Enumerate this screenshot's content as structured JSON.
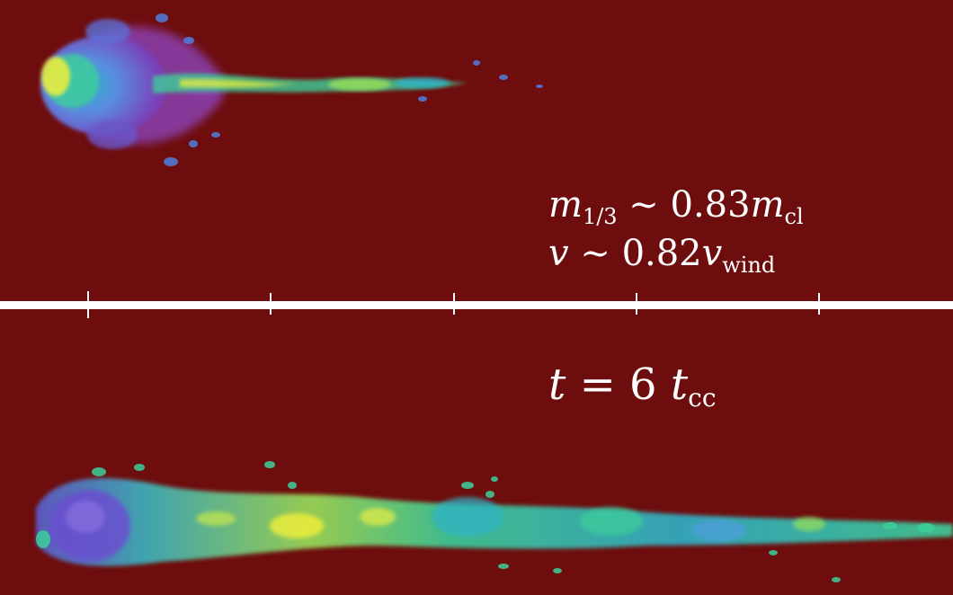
{
  "annotations": {
    "mass": {
      "symbol": "m",
      "subscript": "1/3",
      "relation": "∼",
      "value": "0.83",
      "unit_symbol": "m",
      "unit_subscript": "cl"
    },
    "velocity": {
      "symbol": "v",
      "relation": "∼",
      "value": "0.82",
      "unit_symbol": "v",
      "unit_subscript": "wind"
    },
    "time": {
      "symbol": "t",
      "relation": "=",
      "value": "6",
      "unit_symbol": "t",
      "unit_subscript": "cc"
    }
  },
  "colors": {
    "background": "#6e0d0d",
    "divider": "#ffffff",
    "text": "#ffffff",
    "colormap": [
      "#5b2ea6",
      "#7a55d6",
      "#4f7fe0",
      "#2fb2c8",
      "#3ccf9a",
      "#9ae05a",
      "#f2f03a"
    ]
  }
}
